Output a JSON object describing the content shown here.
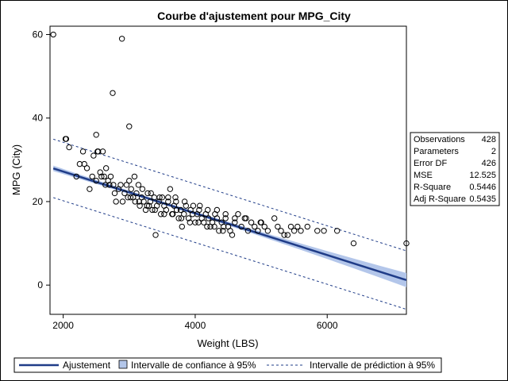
{
  "chart_data": {
    "type": "scatter",
    "title": "Courbe d'ajustement pour MPG_City",
    "xlabel": "Weight (LBS)",
    "ylabel": "MPG (City)",
    "xlim": [
      1800,
      7200
    ],
    "ylim": [
      -7,
      62
    ],
    "xticks": [
      2000,
      4000,
      6000
    ],
    "yticks": [
      0,
      20,
      40,
      60
    ],
    "fit_line": {
      "intercept": 37.2,
      "slope": -0.005
    },
    "confidence_band_halfwidth": {
      "at_mean": 0.35,
      "at_extremes": 1.7
    },
    "prediction_band_halfwidth": 7.0,
    "points": [
      [
        1850,
        60
      ],
      [
        2890,
        59
      ],
      [
        2750,
        46
      ],
      [
        3000,
        38
      ],
      [
        2500,
        36
      ],
      [
        2035,
        35
      ],
      [
        2045,
        35
      ],
      [
        2090,
        33
      ],
      [
        2300,
        32
      ],
      [
        2460,
        31
      ],
      [
        2530,
        32
      ],
      [
        2600,
        32
      ],
      [
        2650,
        28
      ],
      [
        2200,
        26
      ],
      [
        2250,
        29
      ],
      [
        2320,
        29
      ],
      [
        2360,
        28
      ],
      [
        2400,
        23
      ],
      [
        2440,
        26
      ],
      [
        2500,
        25
      ],
      [
        2560,
        27
      ],
      [
        2620,
        26
      ],
      [
        2680,
        25
      ],
      [
        2700,
        24
      ],
      [
        2720,
        26
      ],
      [
        2760,
        24
      ],
      [
        2780,
        22
      ],
      [
        2800,
        20
      ],
      [
        2840,
        23
      ],
      [
        2870,
        24
      ],
      [
        2900,
        20
      ],
      [
        2930,
        22
      ],
      [
        2960,
        24
      ],
      [
        2980,
        21
      ],
      [
        3000,
        25
      ],
      [
        3030,
        23
      ],
      [
        3060,
        21
      ],
      [
        3090,
        20
      ],
      [
        3110,
        22
      ],
      [
        3140,
        24
      ],
      [
        3160,
        19
      ],
      [
        3190,
        21
      ],
      [
        3220,
        20
      ],
      [
        3250,
        18
      ],
      [
        3280,
        22
      ],
      [
        3300,
        19
      ],
      [
        3320,
        20
      ],
      [
        3350,
        18
      ],
      [
        3380,
        21
      ],
      [
        3400,
        12
      ],
      [
        3420,
        19
      ],
      [
        3450,
        20
      ],
      [
        3480,
        17
      ],
      [
        3500,
        21
      ],
      [
        3530,
        19
      ],
      [
        3560,
        18
      ],
      [
        3590,
        20
      ],
      [
        3620,
        23
      ],
      [
        3650,
        17
      ],
      [
        3680,
        19
      ],
      [
        3700,
        21
      ],
      [
        3720,
        18
      ],
      [
        3750,
        16
      ],
      [
        3780,
        18
      ],
      [
        3800,
        14
      ],
      [
        3830,
        17
      ],
      [
        3860,
        19
      ],
      [
        3900,
        16
      ],
      [
        3930,
        18
      ],
      [
        3960,
        17
      ],
      [
        4000,
        15
      ],
      [
        4030,
        17
      ],
      [
        4060,
        18
      ],
      [
        4100,
        16
      ],
      [
        4130,
        15
      ],
      [
        4160,
        17
      ],
      [
        4200,
        16
      ],
      [
        4230,
        14
      ],
      [
        4260,
        15
      ],
      [
        4300,
        17
      ],
      [
        4330,
        16
      ],
      [
        4360,
        13
      ],
      [
        4400,
        15
      ],
      [
        4430,
        14
      ],
      [
        4460,
        16
      ],
      [
        4500,
        14
      ],
      [
        4530,
        13
      ],
      [
        4560,
        12
      ],
      [
        4600,
        15
      ],
      [
        4650,
        17
      ],
      [
        4700,
        14
      ],
      [
        4750,
        16
      ],
      [
        4800,
        13
      ],
      [
        4850,
        15
      ],
      [
        4900,
        14
      ],
      [
        4950,
        13
      ],
      [
        5000,
        15
      ],
      [
        5050,
        14
      ],
      [
        5100,
        13
      ],
      [
        5200,
        16
      ],
      [
        5250,
        14
      ],
      [
        5300,
        13
      ],
      [
        5350,
        12
      ],
      [
        5400,
        12
      ],
      [
        5450,
        14
      ],
      [
        5500,
        13
      ],
      [
        5550,
        14
      ],
      [
        5600,
        13
      ],
      [
        5700,
        14
      ],
      [
        5850,
        13
      ],
      [
        5950,
        13
      ],
      [
        6150,
        13
      ],
      [
        6400,
        10
      ],
      [
        7200,
        10
      ],
      [
        2520,
        32
      ],
      [
        2580,
        26
      ],
      [
        2640,
        24
      ],
      [
        3080,
        26
      ],
      [
        3200,
        23
      ],
      [
        3330,
        22
      ],
      [
        3460,
        21
      ],
      [
        3590,
        21
      ],
      [
        3710,
        20
      ],
      [
        3840,
        20
      ],
      [
        3970,
        19
      ],
      [
        4070,
        19
      ],
      [
        4190,
        18
      ],
      [
        4330,
        18
      ],
      [
        4460,
        17
      ],
      [
        4600,
        16
      ],
      [
        4770,
        16
      ],
      [
        4990,
        15
      ],
      [
        3020,
        21
      ],
      [
        3150,
        20
      ],
      [
        3270,
        19
      ],
      [
        3390,
        18
      ],
      [
        3530,
        17
      ],
      [
        3660,
        17
      ],
      [
        3790,
        16
      ],
      [
        3920,
        15
      ],
      [
        4050,
        15
      ],
      [
        4180,
        14
      ],
      [
        4290,
        14
      ],
      [
        4420,
        13
      ]
    ]
  },
  "stats": [
    {
      "label": "Observations",
      "value": "428"
    },
    {
      "label": "Parameters",
      "value": "2"
    },
    {
      "label": "Error DF",
      "value": "426"
    },
    {
      "label": "MSE",
      "value": "12.525"
    },
    {
      "label": "R-Square",
      "value": "0.5446"
    },
    {
      "label": "Adj R-Square",
      "value": "0.5435"
    }
  ],
  "legend": {
    "fit": "Ajustement",
    "confidence": "Intervalle de confiance à 95%",
    "prediction": "Intervalle de prédiction à 95%"
  },
  "colors": {
    "fit_line": "#1f3c88",
    "confidence_band": "#b3c6ea",
    "prediction_line": "#1f3c88",
    "points": "#000000"
  }
}
